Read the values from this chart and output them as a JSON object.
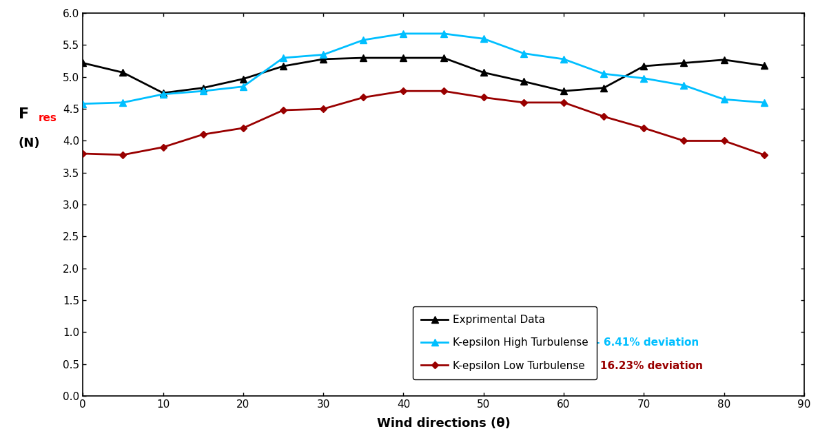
{
  "x": [
    0,
    5,
    10,
    15,
    20,
    25,
    30,
    35,
    40,
    45,
    50,
    55,
    60,
    65,
    70,
    75,
    80,
    85
  ],
  "experimental": [
    5.22,
    5.07,
    4.75,
    4.83,
    4.97,
    5.17,
    5.28,
    5.3,
    5.3,
    5.3,
    5.07,
    4.93,
    4.78,
    4.83,
    5.17,
    5.22,
    5.27,
    5.18
  ],
  "k_eps_high": [
    4.58,
    4.6,
    4.73,
    4.78,
    4.85,
    5.3,
    5.35,
    5.58,
    5.68,
    5.68,
    5.6,
    5.37,
    5.28,
    5.05,
    4.98,
    4.87,
    4.65,
    4.6
  ],
  "k_eps_low": [
    3.8,
    3.78,
    3.9,
    4.1,
    4.2,
    4.48,
    4.5,
    4.68,
    4.78,
    4.78,
    4.68,
    4.6,
    4.6,
    4.38,
    4.2,
    4.0,
    4.0,
    3.78
  ],
  "exp_label": "Exprimental Data",
  "high_label": "K-epsilon High Turbulense",
  "low_label": "K-epsilon Low Turbulense",
  "high_dev": " - 6.41% deviation",
  "low_dev": " - 16.23% deviation",
  "xlabel": "Wind directions (θ)",
  "ylabel_F": "F",
  "ylabel_res": "res",
  "ylabel_N": "(N)",
  "xlim": [
    0,
    90
  ],
  "ylim": [
    0.0,
    6.0
  ],
  "yticks": [
    0.0,
    0.5,
    1.0,
    1.5,
    2.0,
    2.5,
    3.0,
    3.5,
    4.0,
    4.5,
    5.0,
    5.5,
    6.0
  ],
  "xticks": [
    0,
    10,
    20,
    30,
    40,
    50,
    60,
    70,
    80,
    90
  ],
  "exp_color": "#000000",
  "high_color": "#00BFFF",
  "low_color": "#990000",
  "bg_color": "#ffffff",
  "linewidth": 2.0,
  "markersize": 7
}
